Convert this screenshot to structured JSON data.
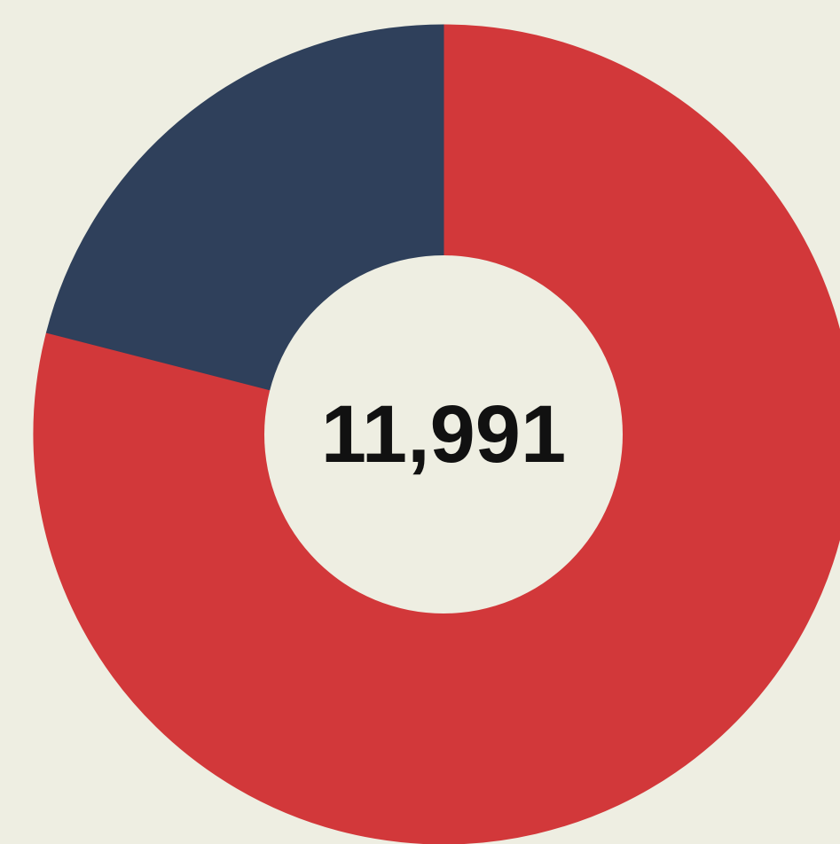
{
  "chart_data": {
    "type": "pie",
    "center_label": "11,991",
    "slices": [
      {
        "value": 79,
        "color": "#d2383a"
      },
      {
        "value": 21,
        "color": "#2f405b"
      }
    ],
    "donut": true,
    "legend": "none",
    "background": "#eeeee2"
  }
}
